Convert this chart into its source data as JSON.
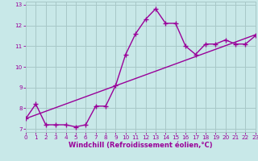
{
  "xlabel": "Windchill (Refroidissement éolien,°C)",
  "line1_x": [
    0,
    1,
    2,
    3,
    4,
    5,
    6,
    7,
    8,
    9,
    10,
    11,
    12,
    13,
    14,
    15,
    16,
    17,
    18,
    19,
    20,
    21,
    22,
    23
  ],
  "line1_y": [
    7.5,
    8.2,
    7.2,
    7.2,
    7.2,
    7.1,
    7.2,
    8.1,
    8.1,
    9.1,
    10.6,
    11.6,
    12.3,
    12.8,
    12.1,
    12.1,
    11.0,
    10.6,
    11.1,
    11.1,
    11.3,
    11.1,
    11.1,
    11.5
  ],
  "line2_x": [
    0,
    23
  ],
  "line2_y": [
    7.5,
    11.55
  ],
  "line_color": "#990099",
  "background_color": "#c8e8e8",
  "grid_color": "#a8c8c8",
  "xlim": [
    0,
    23
  ],
  "ylim": [
    6.85,
    13.15
  ],
  "yticks": [
    7,
    8,
    9,
    10,
    11,
    12,
    13
  ],
  "xticks": [
    0,
    1,
    2,
    3,
    4,
    5,
    6,
    7,
    8,
    9,
    10,
    11,
    12,
    13,
    14,
    15,
    16,
    17,
    18,
    19,
    20,
    21,
    22,
    23
  ],
  "marker": "+",
  "markersize": 5,
  "linewidth": 1.0,
  "label_fontsize": 6.0,
  "tick_fontsize": 5.2
}
